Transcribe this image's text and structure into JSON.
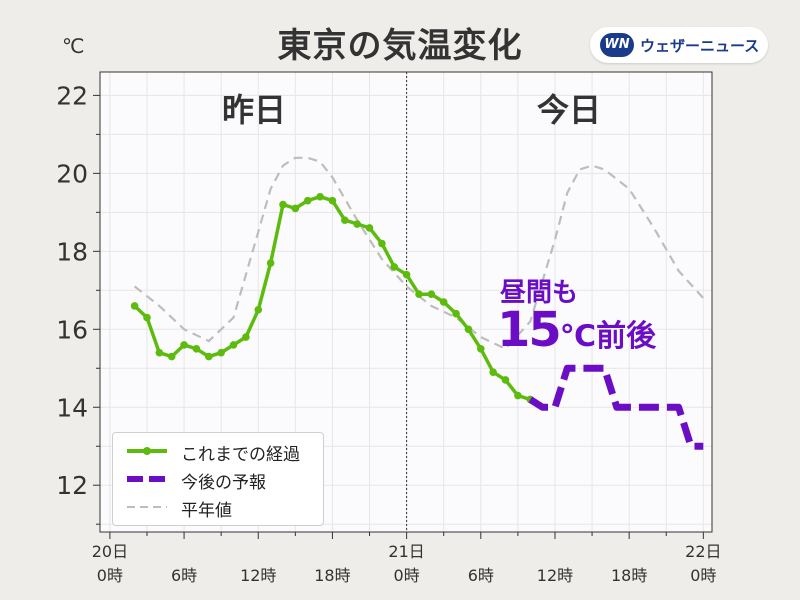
{
  "title": "東京の気温変化",
  "unit_label": "℃",
  "logo": {
    "mark": "WN",
    "text": "ウェザーニュース"
  },
  "day_labels": {
    "yesterday": "昨日",
    "today": "今日"
  },
  "annotation": {
    "line1": "昼間も",
    "value": "15",
    "suffix": "℃前後"
  },
  "legend": {
    "observed": "これまでの経過",
    "forecast": "今後の予報",
    "normal": "平年値"
  },
  "colors": {
    "observed": "#5dbb0e",
    "forecast": "#6a0dc4",
    "normal": "#bdbdbd",
    "annotation": "#6a0dc4"
  },
  "chart_data": {
    "type": "line",
    "title": "東京の気温変化",
    "ylabel": "℃",
    "ylim": [
      10.8,
      22.6
    ],
    "xlim": [
      -0.8,
      48.7
    ],
    "yticks": [
      12,
      14,
      16,
      18,
      20,
      22
    ],
    "xticks": [
      {
        "x": 0,
        "line1": "20日",
        "line2": "0時"
      },
      {
        "x": 6,
        "line1": "",
        "line2": "6時"
      },
      {
        "x": 12,
        "line1": "",
        "line2": "12時"
      },
      {
        "x": 18,
        "line1": "",
        "line2": "18時"
      },
      {
        "x": 24,
        "line1": "21日",
        "line2": "0時"
      },
      {
        "x": 30,
        "line1": "",
        "line2": "6時"
      },
      {
        "x": 36,
        "line1": "",
        "line2": "12時"
      },
      {
        "x": 42,
        "line1": "",
        "line2": "18時"
      },
      {
        "x": 48,
        "line1": "22日",
        "line2": "0時"
      }
    ],
    "grid": true,
    "legend_position": "bottom-left",
    "series": [
      {
        "name": "これまでの経過",
        "style": "solid-markers",
        "x": [
          2,
          3,
          4,
          5,
          6,
          7,
          8,
          9,
          10,
          11,
          12,
          13,
          14,
          15,
          16,
          17,
          18,
          19,
          20,
          21,
          22,
          23,
          24,
          25,
          26,
          27,
          28,
          29,
          30,
          31,
          32,
          33,
          34
        ],
        "y": [
          16.6,
          16.3,
          15.4,
          15.3,
          15.6,
          15.5,
          15.3,
          15.4,
          15.6,
          15.8,
          16.5,
          17.7,
          19.2,
          19.1,
          19.3,
          19.4,
          19.3,
          18.8,
          18.7,
          18.6,
          18.2,
          17.6,
          17.4,
          16.9,
          16.9,
          16.7,
          16.4,
          16.0,
          15.5,
          14.9,
          14.7,
          14.3,
          14.2
        ]
      },
      {
        "name": "今後の予報",
        "style": "dashed-thick",
        "x": [
          34,
          35,
          36,
          37,
          38,
          39,
          40,
          41,
          42,
          43,
          44,
          45,
          46,
          47,
          48
        ],
        "y": [
          14.2,
          14.0,
          14.0,
          15.0,
          15.0,
          15.0,
          15.0,
          14.0,
          14.0,
          14.0,
          14.0,
          14.0,
          14.0,
          13.0,
          13.0
        ]
      },
      {
        "name": "平年値",
        "style": "dashed-thin",
        "x": [
          2,
          4,
          6,
          8,
          10,
          12,
          13,
          14,
          15,
          16,
          17,
          18,
          20,
          22,
          24,
          26,
          28,
          30,
          32,
          34,
          36,
          37,
          38,
          39,
          40,
          42,
          44,
          46,
          48
        ],
        "y": [
          17.1,
          16.6,
          16.0,
          15.7,
          16.3,
          18.5,
          19.6,
          20.2,
          20.4,
          20.4,
          20.3,
          19.9,
          18.8,
          17.8,
          17.1,
          16.6,
          16.3,
          15.8,
          15.5,
          16.2,
          18.3,
          19.5,
          20.1,
          20.2,
          20.1,
          19.6,
          18.6,
          17.5,
          16.8
        ]
      }
    ]
  }
}
